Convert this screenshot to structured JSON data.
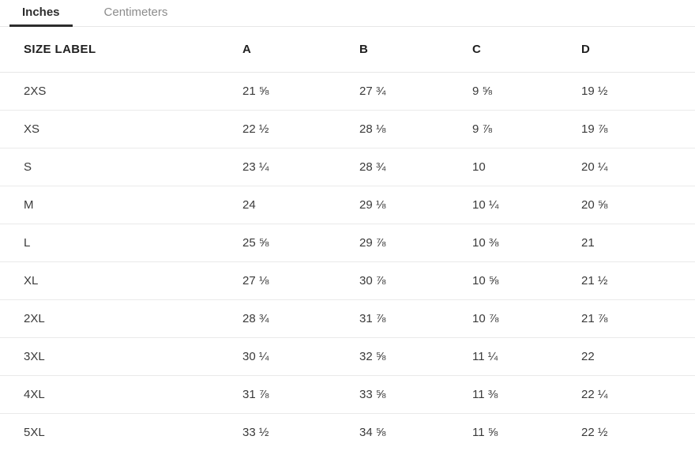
{
  "colors": {
    "accent": "#2d2d2d",
    "inactive_tab": "#8c8c8c",
    "divider": "#e7e7e7",
    "text": "#3a3a3a"
  },
  "tabs": [
    {
      "label": "Inches",
      "active": true
    },
    {
      "label": "Centimeters",
      "active": false
    }
  ],
  "table": {
    "columns": [
      "SIZE LABEL",
      "A",
      "B",
      "C",
      "D"
    ],
    "rows": [
      [
        "2XS",
        "21 ⅝",
        "27 ¾",
        "9 ⅝",
        "19 ½"
      ],
      [
        "XS",
        "22 ½",
        "28 ⅛",
        "9 ⅞",
        "19 ⅞"
      ],
      [
        "S",
        "23 ¼",
        "28 ¾",
        "10",
        "20 ¼"
      ],
      [
        "M",
        "24",
        "29 ⅛",
        "10 ¼",
        "20 ⅝"
      ],
      [
        "L",
        "25 ⅝",
        "29 ⅞",
        "10 ⅜",
        "21"
      ],
      [
        "XL",
        "27 ⅛",
        "30 ⅞",
        "10 ⅝",
        "21 ½"
      ],
      [
        "2XL",
        "28 ¾",
        "31 ⅞",
        "10 ⅞",
        "21 ⅞"
      ],
      [
        "3XL",
        "30 ¼",
        "32 ⅝",
        "11 ¼",
        "22"
      ],
      [
        "4XL",
        "31 ⅞",
        "33 ⅝",
        "11 ⅜",
        "22 ¼"
      ],
      [
        "5XL",
        "33 ½",
        "34 ⅝",
        "11 ⅝",
        "22 ½"
      ]
    ]
  }
}
